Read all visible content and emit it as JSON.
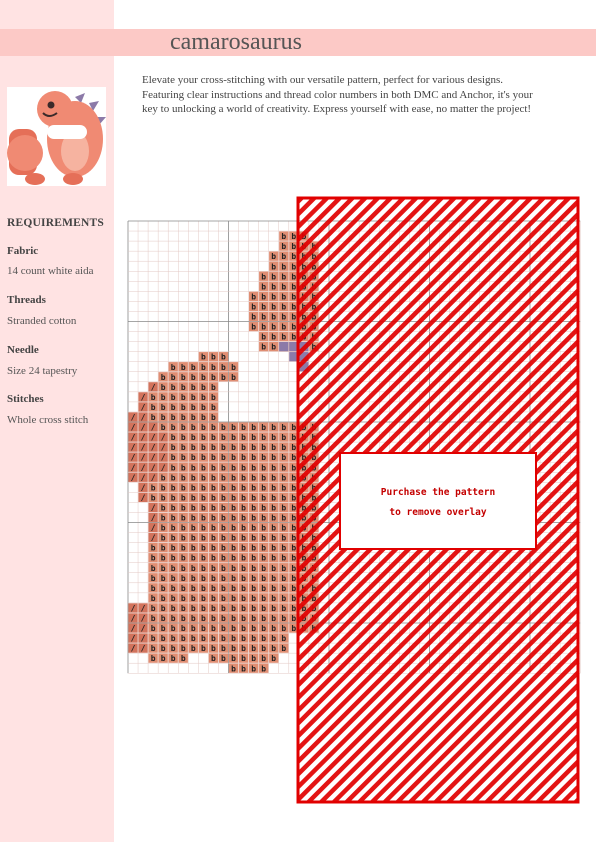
{
  "title": "camarosaurus",
  "description": "Elevate your cross-stitching with our versatile pattern, perfect for various designs. Featuring clear instructions and thread color numbers in both DMC and Anchor, it's your key to unlocking a world of creativity. Express yourself with ease, no matter the project!",
  "requirements": {
    "heading": "REQUIREMENTS",
    "items": [
      {
        "label": "Fabric",
        "value": "14 count white aida"
      },
      {
        "label": "Threads",
        "value": "Stranded cotton"
      },
      {
        "label": "Needle",
        "value": "Size 24 tapestry"
      },
      {
        "label": "Stitches",
        "value": "Whole cross stitch"
      }
    ]
  },
  "overlay": {
    "line1": "Purchase the pattern",
    "line2": "to remove overlay"
  },
  "pattern_symbols": {
    "main": "b",
    "secondary": "/"
  },
  "colors": {
    "sidebar": "#ffe3e3",
    "title_band": "#fcc9c6",
    "stitch_main": "#e08e73",
    "stitch_dark": "#d2735c",
    "stitch_accent": "#8c7aa8",
    "overlay_red": "#e10000"
  }
}
